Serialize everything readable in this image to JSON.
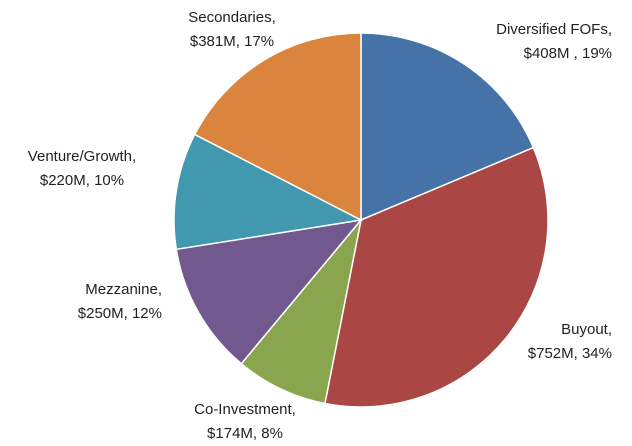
{
  "chart_data": {
    "type": "pie",
    "categories": [
      "Diversified FOFs,",
      "Buyout,",
      "Co-Investment,",
      "Mezzanine,",
      "Venture/Growth,",
      "Secondaries,"
    ],
    "values": [
      408000000,
      752000000,
      174000000,
      250000000,
      220000000,
      381000000
    ],
    "value_labels": [
      "$408M , 19%",
      "$752M, 34%",
      "$174M, 8%",
      "$250M, 12%",
      "$220M, 10%",
      "$381M, 17%"
    ],
    "colors": [
      "#4572a7",
      "#aa4643",
      "#89a54e",
      "#71588f",
      "#4198af",
      "#db843d"
    ]
  }
}
